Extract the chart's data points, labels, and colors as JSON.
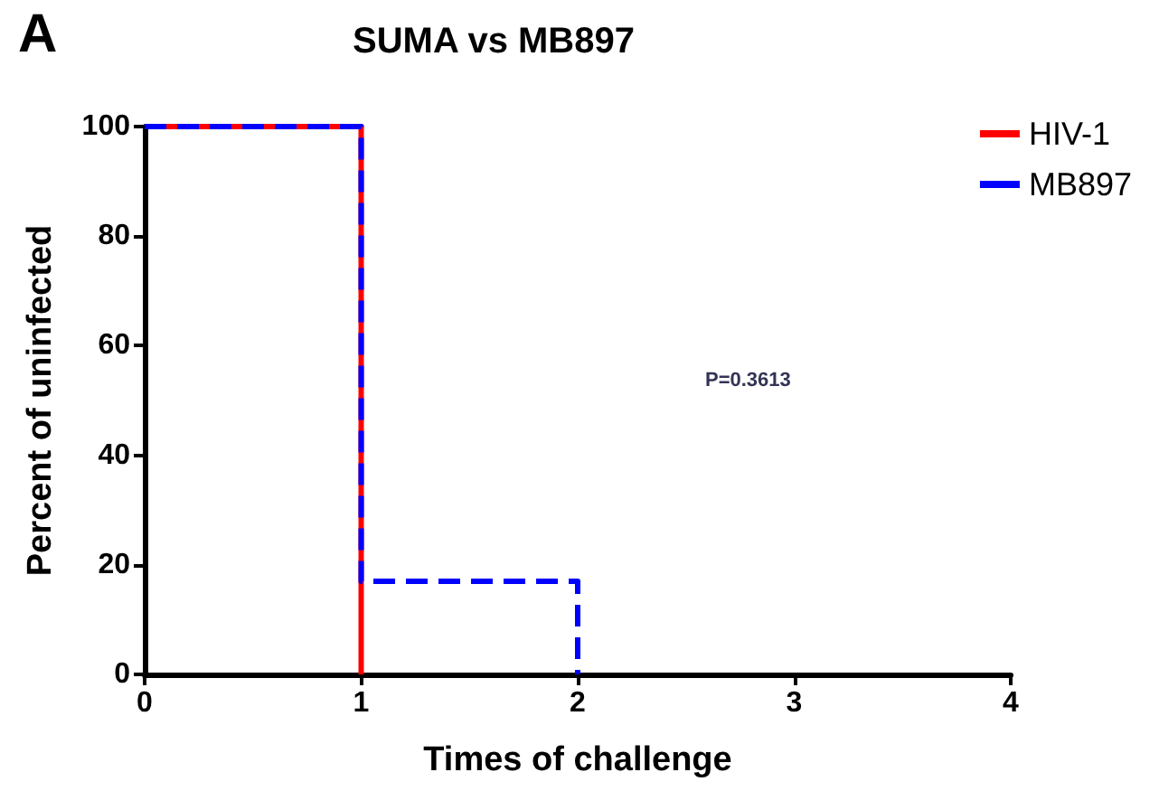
{
  "chart_data": {
    "type": "step",
    "title": "SUMA vs MB897",
    "xlabel": "Times of challenge",
    "ylabel": "Percent of uninfected",
    "annotations": [
      "A",
      "P=0.3613"
    ],
    "series": [
      {
        "name": "HIV-1",
        "color": "#ff0000",
        "x": [
          0,
          1
        ],
        "values": [
          100,
          0
        ],
        "line_style": "solid"
      },
      {
        "name": "MB897",
        "color": "#0000ff",
        "x": [
          0,
          1,
          2
        ],
        "values": [
          100,
          17,
          0
        ],
        "line_style": "dashed"
      }
    ],
    "xlim": [
      0,
      4
    ],
    "xticks": [
      0,
      1,
      2,
      3,
      4
    ],
    "ylim": [
      0,
      100
    ],
    "yticks": [
      0,
      20,
      40,
      60,
      80,
      100
    ],
    "grid": false,
    "legend": "top right",
    "marker": "none"
  }
}
